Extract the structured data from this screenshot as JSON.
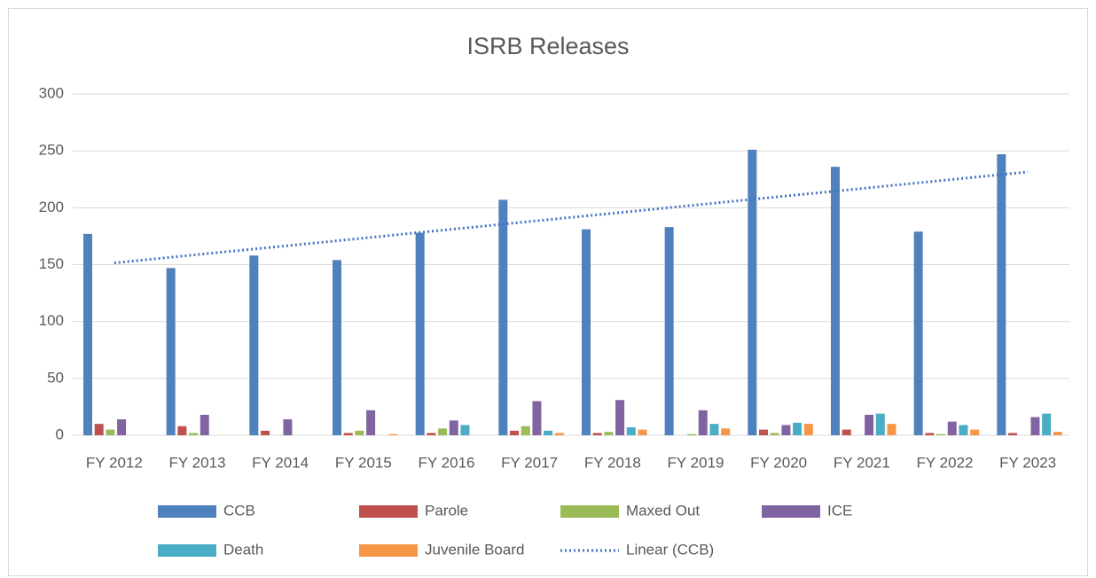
{
  "chart_data": {
    "type": "bar",
    "title": "ISRB Releases",
    "categories": [
      "FY 2012",
      "FY 2013",
      "FY 2014",
      "FY 2015",
      "FY 2016",
      "FY 2017",
      "FY 2018",
      "FY 2019",
      "FY 2020",
      "FY 2021",
      "FY 2022",
      "FY 2023"
    ],
    "series": [
      {
        "name": "CCB",
        "color": "#4f81bd",
        "values": [
          177,
          147,
          158,
          154,
          178,
          207,
          181,
          183,
          251,
          236,
          179,
          247
        ]
      },
      {
        "name": "Parole",
        "color": "#c0504d",
        "values": [
          10,
          8,
          4,
          2,
          2,
          4,
          2,
          0,
          5,
          5,
          2,
          2
        ]
      },
      {
        "name": "Maxed Out",
        "color": "#9bbb59",
        "values": [
          5,
          2,
          0,
          4,
          6,
          8,
          3,
          1,
          2,
          0,
          1,
          0
        ]
      },
      {
        "name": "ICE",
        "color": "#8064a2",
        "values": [
          14,
          18,
          14,
          22,
          13,
          30,
          31,
          22,
          9,
          18,
          12,
          16
        ]
      },
      {
        "name": "Death",
        "color": "#4bacc6",
        "values": [
          0,
          0,
          0,
          0,
          9,
          4,
          7,
          10,
          11,
          19,
          9,
          19
        ]
      },
      {
        "name": "Juvenile Board",
        "color": "#f79646",
        "values": [
          0,
          0,
          0,
          1,
          0,
          2,
          5,
          6,
          10,
          10,
          5,
          3
        ]
      }
    ],
    "trendline": {
      "name": "Linear (CCB)",
      "color": "#4472c4",
      "values": [
        151.5,
        158.8,
        166.0,
        173.3,
        180.6,
        187.9,
        195.1,
        202.4,
        209.7,
        216.9,
        224.2,
        231.5
      ]
    },
    "ylim": [
      0,
      300
    ],
    "yticks": [
      0,
      50,
      100,
      150,
      200,
      250,
      300
    ],
    "grid": true,
    "legend": "bottom"
  }
}
